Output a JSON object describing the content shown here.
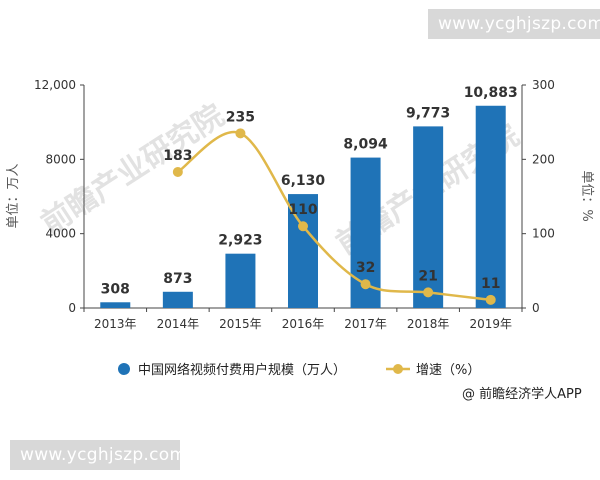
{
  "watermark_url_top": "www.ycghjszp.com",
  "watermark_url_bottom": "www.ycghjszp.com",
  "watermark_text": "前瞻产业研究院",
  "source": "@ 前瞻经济学人APP",
  "colors": {
    "bar": "#1f73b7",
    "line": "#e0b84a",
    "axis": "#444444",
    "label": "#333333"
  },
  "chart_data": {
    "type": "bar",
    "categories": [
      "2013年",
      "2014年",
      "2015年",
      "2016年",
      "2017年",
      "2018年",
      "2019年"
    ],
    "series": [
      {
        "name": "中国网络视频付费用户规模（万人）",
        "type": "bar",
        "axis": "left",
        "values": [
          308,
          873,
          2923,
          6130,
          8094,
          9773,
          10883
        ],
        "labels": [
          "308",
          "873",
          "2,923",
          "6,130",
          "8,094",
          "9,773",
          "10,883"
        ]
      },
      {
        "name": "增速（%）",
        "type": "line",
        "axis": "right",
        "values": [
          null,
          183,
          235,
          110,
          32,
          21,
          11
        ],
        "labels": [
          "",
          "183",
          "235",
          "110",
          "32",
          "21",
          "11"
        ]
      }
    ],
    "ylabel": "单位：万人",
    "y2label": "单位：%",
    "ylim": [
      0,
      12000
    ],
    "y2lim": [
      0,
      300
    ],
    "yticks": [
      0,
      4000,
      8000,
      12000
    ],
    "yticklabels": [
      "0",
      "4000",
      "8000",
      "12,000"
    ],
    "y2ticks": [
      0,
      100,
      200,
      300
    ],
    "y2ticklabels": [
      "0",
      "100",
      "200",
      "300"
    ],
    "grid": false,
    "legend": "bottom"
  }
}
